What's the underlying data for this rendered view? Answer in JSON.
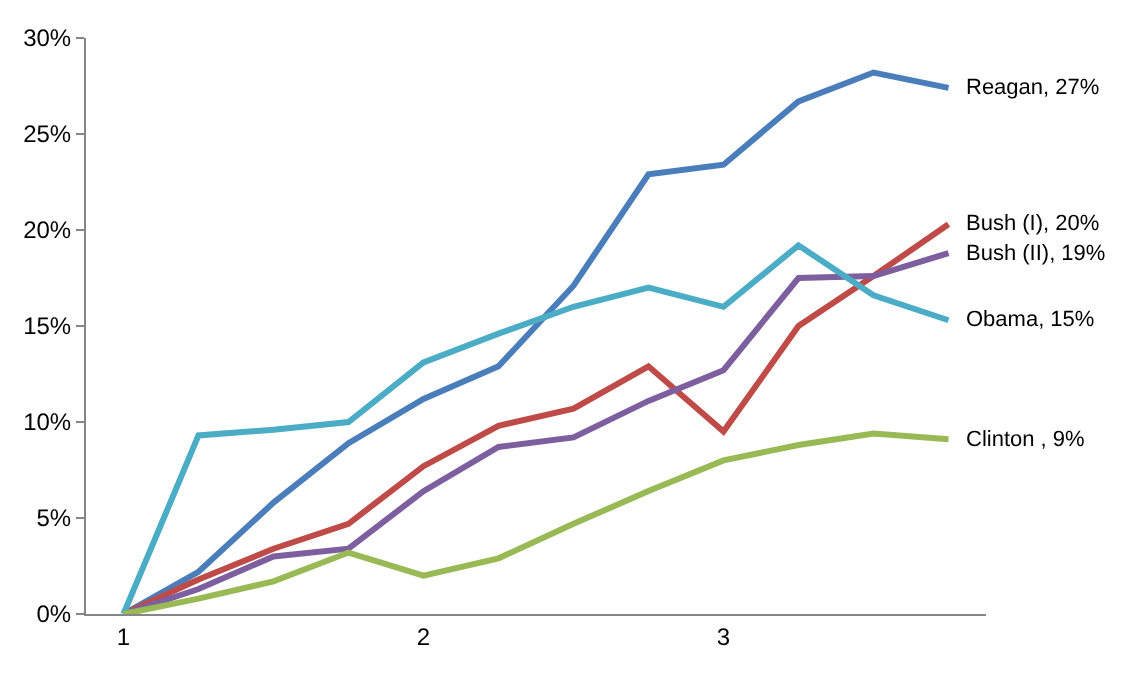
{
  "chart_data": {
    "type": "line",
    "categories": [
      "1",
      null,
      null,
      null,
      "2",
      null,
      null,
      null,
      "3",
      null,
      null,
      null
    ],
    "ylim": [
      0,
      30
    ],
    "yticks": [
      {
        "value": 0,
        "label": "0%"
      },
      {
        "value": 5,
        "label": "5%"
      },
      {
        "value": 10,
        "label": "10%"
      },
      {
        "value": 15,
        "label": "15%"
      },
      {
        "value": 20,
        "label": "20%"
      },
      {
        "value": 25,
        "label": "25%"
      },
      {
        "value": 30,
        "label": "30%"
      }
    ],
    "grid": false,
    "legend": false,
    "marker": "none",
    "line_style": "solid",
    "series": [
      {
        "name": "Reagan, 27%",
        "color": "#4a7ebb",
        "values": [
          0,
          2.2,
          5.8,
          8.9,
          11.2,
          12.9,
          17.1,
          22.9,
          23.4,
          26.7,
          28.2,
          27.4
        ]
      },
      {
        "name": "Bush (I), 20%",
        "color": "#be4b48",
        "values": [
          0,
          1.8,
          3.4,
          4.7,
          7.7,
          9.8,
          10.7,
          12.9,
          9.5,
          15.0,
          17.6,
          20.3
        ]
      },
      {
        "name": "Bush (II), 19%",
        "color": "#7d5fa0",
        "values": [
          0,
          1.3,
          3.0,
          3.4,
          6.4,
          8.7,
          9.2,
          11.1,
          12.7,
          17.5,
          17.6,
          18.8
        ]
      },
      {
        "name": "Obama, 15%",
        "color": "#4bacc6",
        "values": [
          0,
          9.3,
          9.6,
          10.0,
          13.1,
          14.6,
          16.0,
          17.0,
          16.0,
          19.2,
          16.6,
          15.3
        ]
      },
      {
        "name": "Clinton , 9%",
        "color": "#98b954",
        "values": [
          0,
          0.8,
          1.7,
          3.2,
          2.0,
          2.9,
          4.7,
          6.4,
          8.0,
          8.8,
          9.4,
          9.1
        ]
      }
    ]
  }
}
